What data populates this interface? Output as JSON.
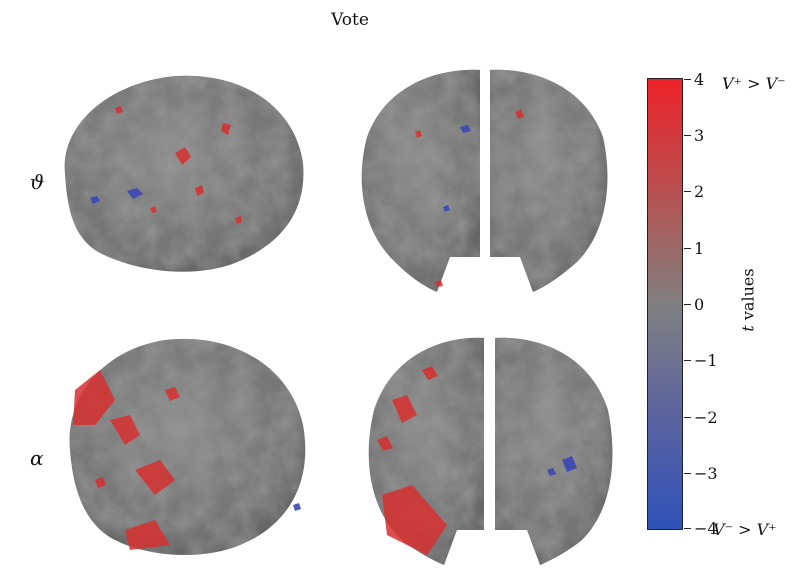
{
  "title": "Vote",
  "rows": [
    {
      "label": "ϑ"
    },
    {
      "label": "α"
    }
  ],
  "colorbar": {
    "label_var": "t",
    "label_text": " values",
    "ticks": [
      "4",
      "3",
      "2",
      "1",
      "0",
      "−1",
      "−2",
      "−3",
      "−4"
    ],
    "top_annotation": "V⁺ > V⁻",
    "bottom_annotation": "V⁻ > V⁺",
    "colors": {
      "top": "#e8292c",
      "middle": "#808080",
      "bottom": "#3a59b4"
    }
  },
  "images": [
    {
      "name": "brain-theta-lateral",
      "view": "lateral"
    },
    {
      "name": "brain-theta-posterior",
      "view": "posterior"
    },
    {
      "name": "brain-alpha-lateral",
      "view": "lateral"
    },
    {
      "name": "brain-alpha-posterior",
      "view": "posterior"
    }
  ]
}
